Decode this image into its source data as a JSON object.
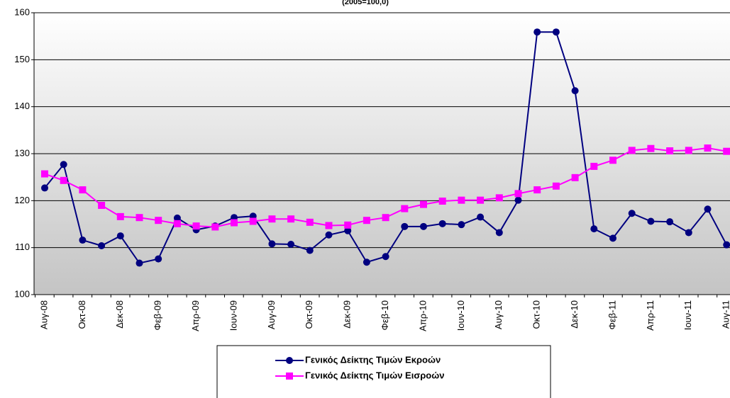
{
  "chart_data": {
    "type": "line",
    "title": "(2005=100,0)",
    "categories": [
      "Αυγ-08",
      null,
      "Οκτ-08",
      null,
      "Δεκ-08",
      null,
      "Φεβ-09",
      null,
      "Απρ-09",
      null,
      "Ιουν-09",
      null,
      "Αυγ-09",
      null,
      "Οκτ-09",
      null,
      "Δεκ-09",
      null,
      "Φεβ-10",
      null,
      "Απρ-10",
      null,
      "Ιουν-10",
      null,
      "Αυγ-10",
      null,
      "Οκτ-10",
      null,
      "Δεκ-10",
      null,
      "Φεβ-11",
      null,
      "Απρ-11",
      null,
      "Ιουν-11",
      null,
      "Αυγ-11"
    ],
    "series": [
      {
        "name": "Γενικός Δείκτης Τιμών Εκροών",
        "color": "#000080",
        "marker": "circle",
        "values": [
          122.7,
          127.7,
          111.6,
          110.4,
          112.5,
          106.7,
          107.6,
          116.3,
          113.8,
          114.6,
          116.4,
          116.7,
          110.8,
          110.7,
          109.4,
          112.7,
          113.6,
          106.9,
          108.1,
          114.5,
          114.5,
          115.1,
          114.9,
          116.5,
          113.2,
          120.1,
          155.9,
          155.9,
          143.4,
          114.0,
          112.0,
          117.3,
          115.6,
          115.5,
          113.2,
          118.2,
          110.6
        ]
      },
      {
        "name": "Γενικός Δείκτης Τιμών Εισροών",
        "color": "#ff00ff",
        "marker": "square",
        "values": [
          125.7,
          124.3,
          122.3,
          119.0,
          116.6,
          116.4,
          115.8,
          115.1,
          114.6,
          114.4,
          115.3,
          115.6,
          116.1,
          116.1,
          115.4,
          114.7,
          114.8,
          115.8,
          116.4,
          118.3,
          119.2,
          119.9,
          120.1,
          120.1,
          120.6,
          121.5,
          122.3,
          123.1,
          124.9,
          127.3,
          128.6,
          130.7,
          131.1,
          130.6,
          130.7,
          131.2,
          130.5
        ]
      }
    ],
    "ylim": [
      100,
      160
    ],
    "yticks": [
      100,
      110,
      120,
      130,
      140,
      150,
      160
    ],
    "grid": true
  }
}
